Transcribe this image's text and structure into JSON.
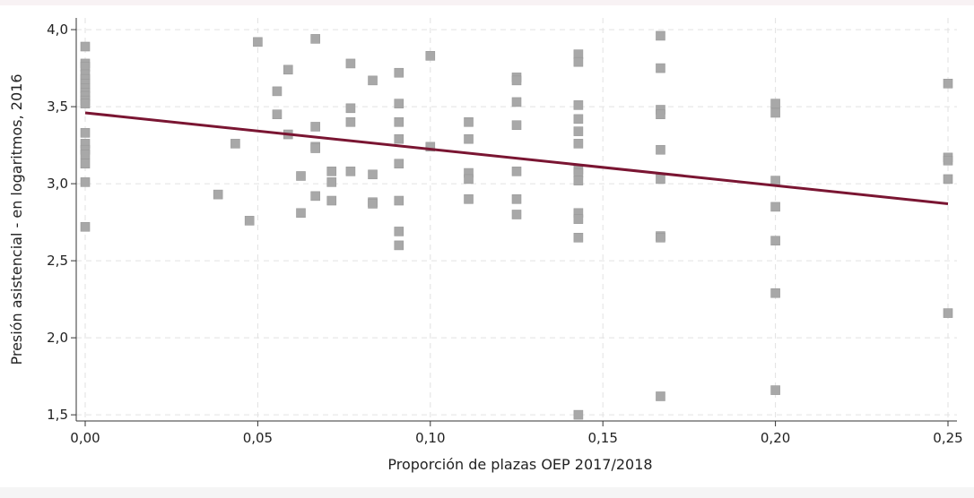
{
  "chart_data": {
    "type": "scatter",
    "x_label": "Proporción de plazas OEP 2017/2018",
    "y_label": "Presión asistencial - en logaritmos, 2016",
    "xlim": [
      -0.0026,
      0.2526
    ],
    "ylim": [
      1.46,
      4.076
    ],
    "xticks": [
      {
        "value": 0,
        "label": "0,00"
      },
      {
        "value": 0.05,
        "label": "0,05"
      },
      {
        "value": 0.1,
        "label": "0,10"
      },
      {
        "value": 0.15,
        "label": "0,15"
      },
      {
        "value": 0.2,
        "label": "0,20"
      },
      {
        "value": 0.25,
        "label": "0,25"
      }
    ],
    "yticks": [
      {
        "value": 1.5,
        "label": "1,5"
      },
      {
        "value": 2,
        "label": "2,0"
      },
      {
        "value": 2.5,
        "label": "2,5"
      },
      {
        "value": 3,
        "label": "3,0"
      },
      {
        "value": 3.5,
        "label": "3,5"
      },
      {
        "value": 4,
        "label": "4,0"
      }
    ],
    "grid": true,
    "series": [
      {
        "color": "#a8a8a8",
        "x": [
          0,
          0,
          0,
          0,
          0,
          0,
          0,
          0,
          0,
          0,
          0,
          0,
          0,
          0,
          0,
          0,
          0,
          0,
          0.0385,
          0.0435,
          0.0476,
          0.05,
          0.0556,
          0.0556,
          0.0588,
          0.0588,
          0.0625,
          0.0625,
          0.0667,
          0.0667,
          0.0667,
          0.0667,
          0.0667,
          0.0714,
          0.0714,
          0.0714,
          0.0769,
          0.0769,
          0.0769,
          0.0769,
          0.0833,
          0.0833,
          0.0833,
          0.0833,
          0.0909,
          0.0909,
          0.0909,
          0.0909,
          0.0909,
          0.0909,
          0.0909,
          0.0909,
          0.1,
          0.1,
          0.1111,
          0.1111,
          0.1111,
          0.1111,
          0.1111,
          0.125,
          0.125,
          0.125,
          0.125,
          0.125,
          0.125,
          0.125,
          0.1429,
          0.1429,
          0.1429,
          0.1429,
          0.1429,
          0.1429,
          0.1429,
          0.1429,
          0.1429,
          0.1429,
          0.1429,
          0.1429,
          0.1429,
          0.1667,
          0.1667,
          0.1667,
          0.1667,
          0.1667,
          0.1667,
          0.1667,
          0.1667,
          0.1667,
          0.2,
          0.2,
          0.2,
          0.2,
          0.2,
          0.2,
          0.2,
          0.25,
          0.25,
          0.25,
          0.25,
          0.25
        ],
        "values": [
          3.89,
          3.78,
          3.76,
          3.71,
          3.68,
          3.65,
          3.62,
          3.59,
          3.57,
          3.54,
          3.52,
          3.33,
          3.26,
          3.22,
          3.19,
          3.13,
          3.01,
          2.72,
          2.93,
          3.26,
          2.76,
          3.92,
          3.6,
          3.45,
          3.74,
          3.32,
          3.05,
          2.81,
          3.94,
          3.37,
          3.24,
          3.23,
          2.92,
          3.08,
          3.01,
          2.89,
          3.78,
          3.49,
          3.4,
          3.08,
          3.67,
          3.06,
          2.88,
          2.87,
          3.72,
          3.52,
          3.4,
          3.29,
          3.13,
          2.89,
          2.69,
          2.6,
          3.83,
          3.24,
          3.4,
          3.29,
          3.07,
          3.03,
          2.9,
          3.69,
          3.67,
          3.53,
          3.38,
          3.08,
          2.9,
          2.8,
          3.84,
          3.79,
          3.51,
          3.42,
          3.34,
          3.26,
          3.09,
          3.07,
          3.02,
          2.81,
          2.77,
          2.65,
          1.5,
          3.96,
          3.75,
          3.48,
          3.45,
          3.22,
          3.03,
          2.66,
          2.65,
          1.62,
          3.52,
          3.46,
          3.02,
          2.85,
          2.63,
          2.29,
          1.66,
          3.65,
          3.17,
          3.15,
          3.03,
          2.16
        ]
      }
    ],
    "fit_line": {
      "color": "#7a1532",
      "x": [
        0,
        0.25
      ],
      "values": [
        3.46,
        2.87
      ]
    }
  }
}
